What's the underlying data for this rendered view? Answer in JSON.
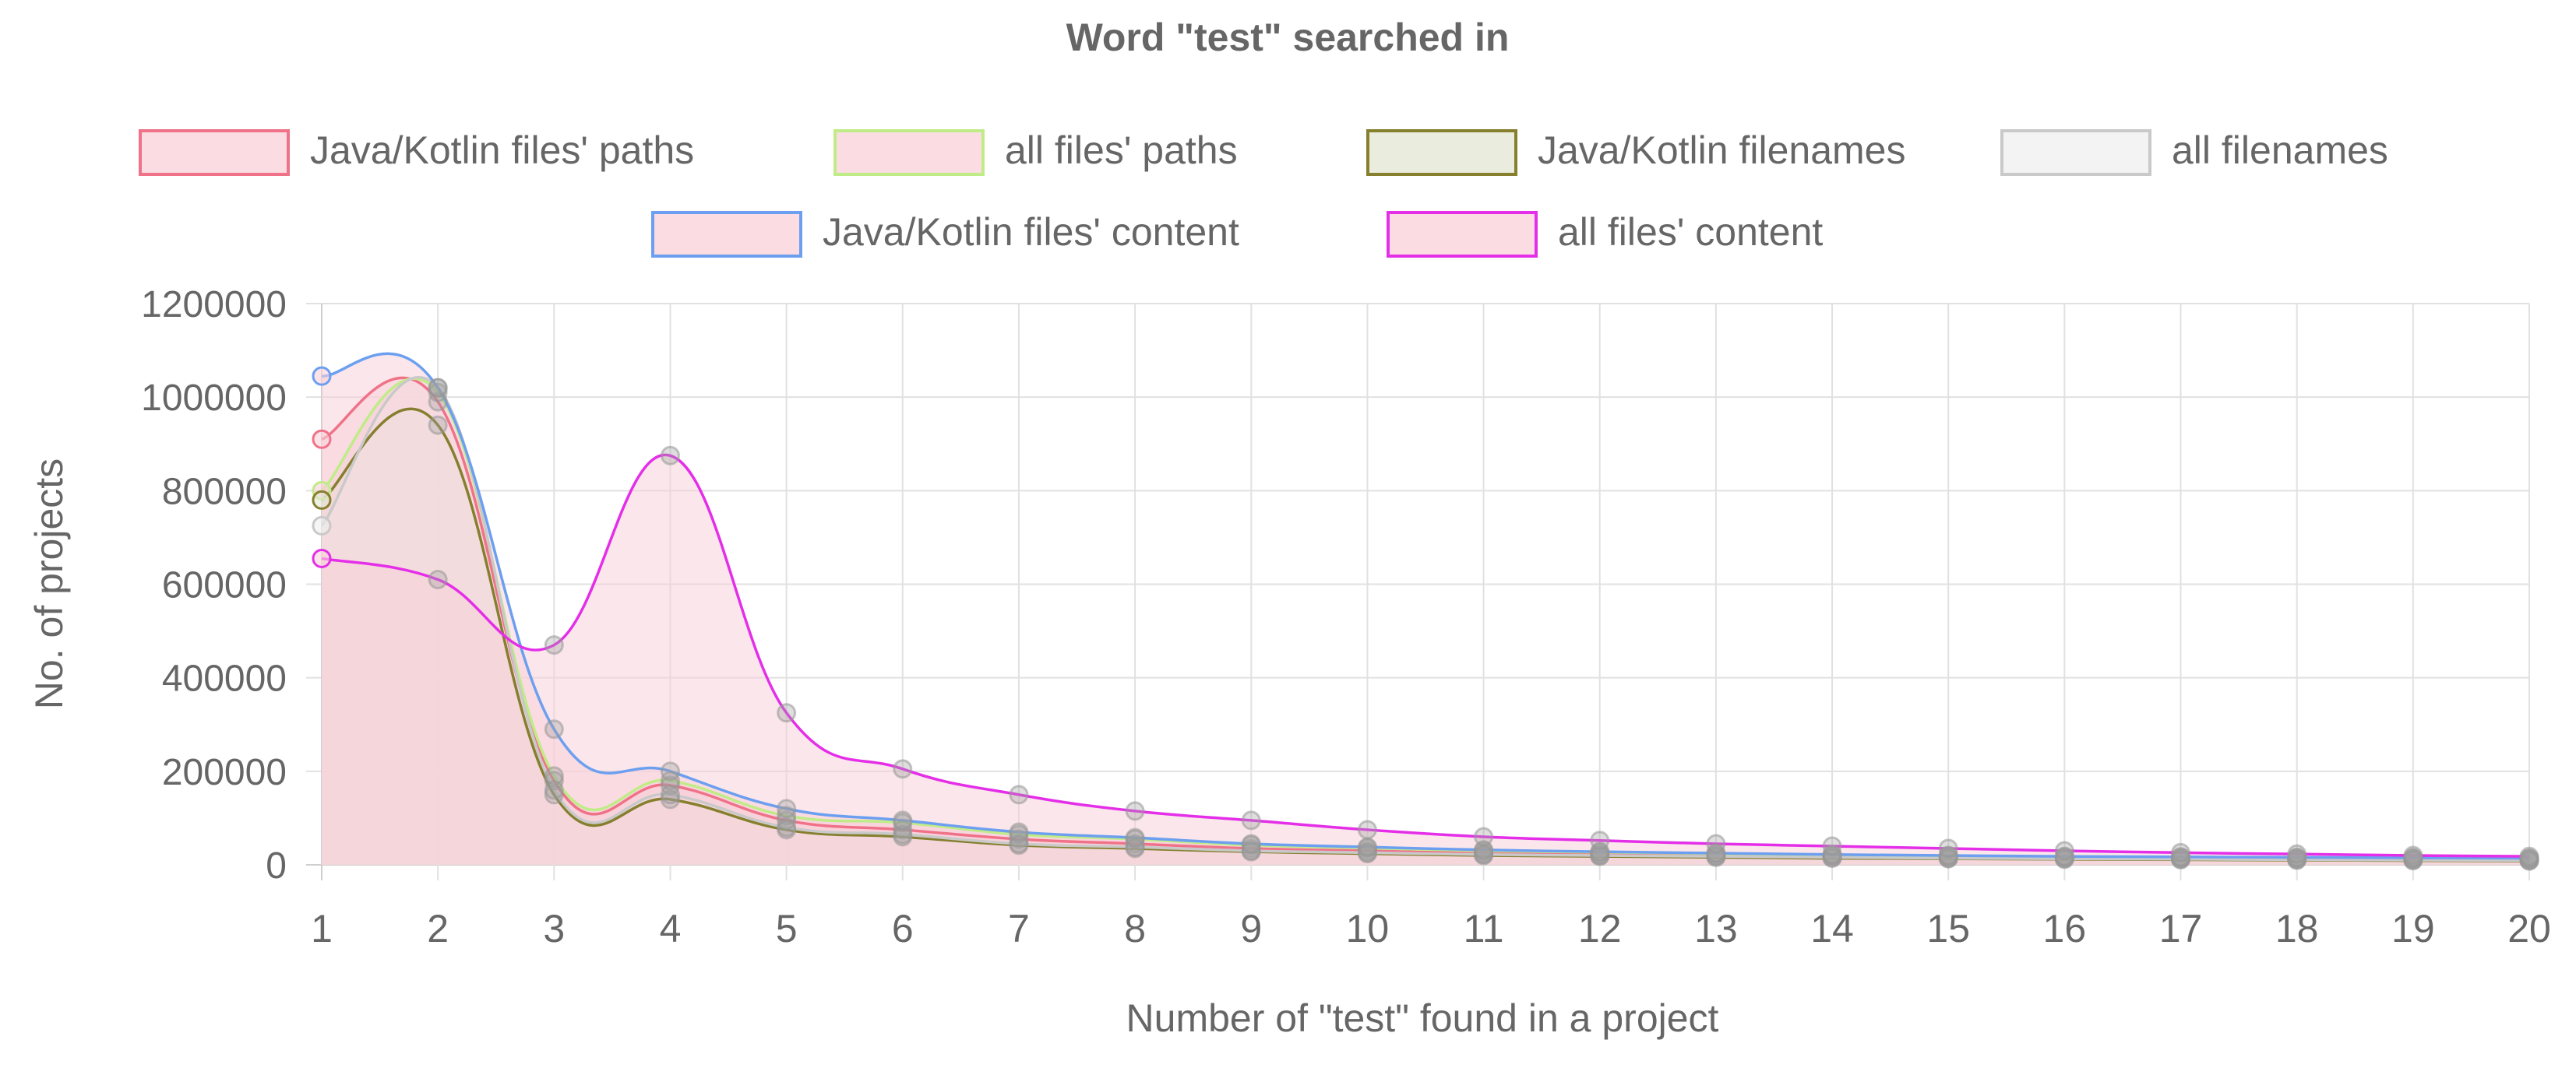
{
  "chart_data": {
    "type": "line",
    "title": "Word \"test\" searched in",
    "xlabel": "Number of \"test\" found in a project",
    "ylabel": "No. of projects",
    "x": [
      1,
      2,
      3,
      4,
      5,
      6,
      7,
      8,
      9,
      10,
      11,
      12,
      13,
      14,
      15,
      16,
      17,
      18,
      19,
      20
    ],
    "x_tick_labels": [
      "1",
      "2",
      "3",
      "4",
      "5",
      "6",
      "7",
      "8",
      "9",
      "10",
      "11",
      "12",
      "13",
      "14",
      "15",
      "16",
      "17",
      "18",
      "19",
      "20"
    ],
    "y_tick_labels": [
      "0",
      "200000",
      "400000",
      "600000",
      "800000",
      "1000000",
      "1200000"
    ],
    "ylim": [
      0,
      1200000
    ],
    "grid": true,
    "legend_position": "top",
    "filled_area": true,
    "series": [
      {
        "name": "Java/Kotlin files' paths",
        "color": "#f07289",
        "fill": "#f8d0d8",
        "values": [
          910000,
          990000,
          180000,
          170000,
          95000,
          75000,
          55000,
          45000,
          35000,
          30000,
          25000,
          22000,
          20000,
          18000,
          16000,
          15000,
          14000,
          13000,
          12000,
          11000
        ]
      },
      {
        "name": "all files' paths",
        "color": "#c0ec88",
        "fill": "#f8d0d8",
        "values": [
          800000,
          1010000,
          190000,
          180000,
          105000,
          90000,
          65000,
          55000,
          42000,
          36000,
          30000,
          27000,
          24000,
          21000,
          19000,
          17000,
          16000,
          15000,
          14000,
          13000
        ]
      },
      {
        "name": "Java/Kotlin filenames",
        "color": "#857f2e",
        "fill": "#e3e5d3",
        "values": [
          780000,
          940000,
          150000,
          140000,
          75000,
          60000,
          42000,
          35000,
          28000,
          24000,
          20000,
          18000,
          16000,
          14000,
          13000,
          12000,
          11000,
          10000,
          9000,
          8000
        ]
      },
      {
        "name": "all filenames",
        "color": "#c9c9c9",
        "fill": "#efefef",
        "values": [
          725000,
          1020000,
          160000,
          150000,
          80000,
          65000,
          45000,
          38000,
          30000,
          26000,
          22000,
          20000,
          18000,
          16000,
          14000,
          13000,
          12000,
          11000,
          10000,
          9000
        ]
      },
      {
        "name": "Java/Kotlin files' content",
        "color": "#6d9ff0",
        "fill": "#f8d0d8",
        "values": [
          1045000,
          1020000,
          290000,
          200000,
          120000,
          95000,
          70000,
          58000,
          45000,
          38000,
          32000,
          28000,
          25000,
          22000,
          20000,
          18000,
          17000,
          16000,
          15000,
          14000
        ]
      },
      {
        "name": "all files' content",
        "color": "#e42ee8",
        "fill": "#f8d0d8",
        "values": [
          655000,
          610000,
          470000,
          875000,
          325000,
          205000,
          150000,
          115000,
          95000,
          75000,
          60000,
          52000,
          45000,
          40000,
          35000,
          30000,
          26000,
          23000,
          20000,
          18000
        ]
      }
    ]
  }
}
